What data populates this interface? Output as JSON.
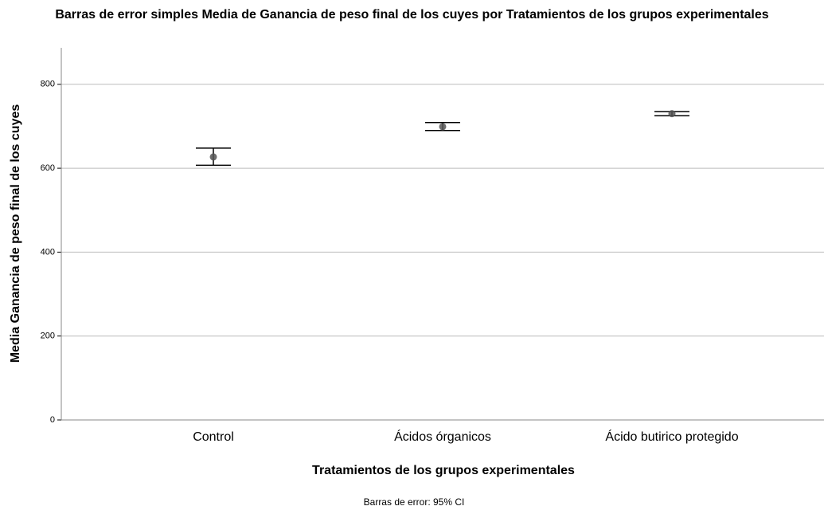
{
  "chart_data": {
    "type": "errorbar",
    "title": "Barras de error simples Media de Ganancia de peso final de los cuyes por Tratamientos de los grupos experimentales",
    "x_label": "Tratamientos de los grupos experimentales",
    "y_label": "Media Ganancia de peso final de los cuyes",
    "note": "Barras de error: 95% CI",
    "categories": [
      "Control",
      "Ácidos órganicos",
      "Ácido butirico protegido"
    ],
    "values": [
      627,
      699,
      730
    ],
    "lower": [
      607,
      690,
      725
    ],
    "upper": [
      648,
      709,
      735
    ],
    "color": "#555555",
    "ylim": [
      0,
      887
    ],
    "yticks": [
      0,
      200,
      400,
      600,
      800
    ],
    "grid": true
  }
}
